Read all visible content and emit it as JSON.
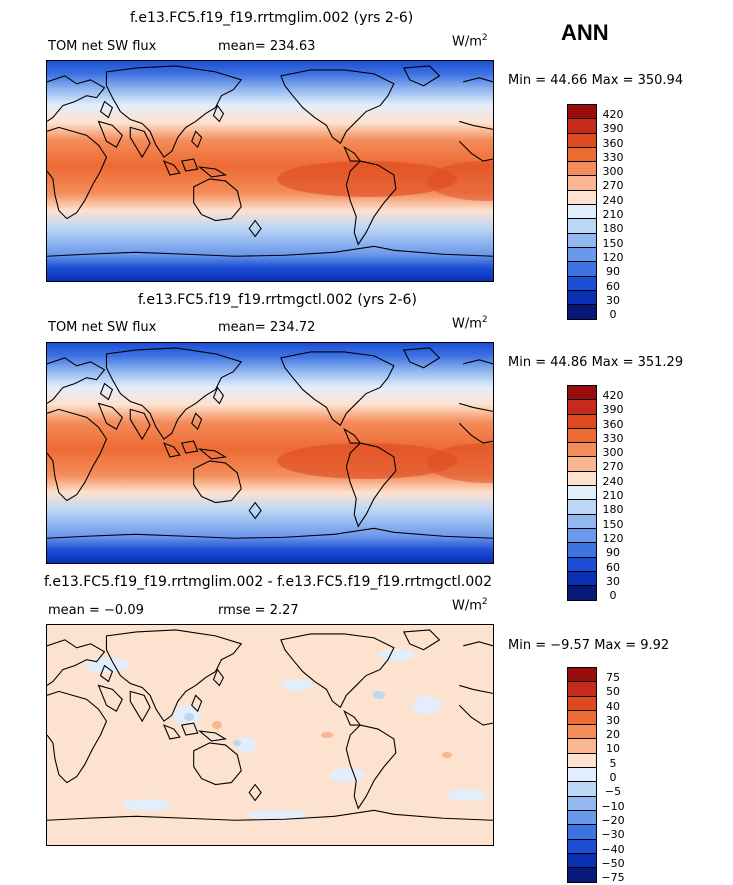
{
  "season": "ANN",
  "panels": [
    {
      "title": "f.e13.FC5.f19_f19.rrtmglim.002 (yrs 2-6)",
      "left_label": "TOM net SW flux",
      "stat_label": "mean= 234.63",
      "units": "W/m",
      "units_exp": "2",
      "minmax": "Min =  44.66 Max = 350.94"
    },
    {
      "title": "f.e13.FC5.f19_f19.rrtmgctl.002 (yrs 2-6)",
      "left_label": "TOM net SW flux",
      "stat_label": "mean= 234.72",
      "units": "W/m",
      "units_exp": "2",
      "minmax": "Min =  44.86 Max = 351.29"
    },
    {
      "title": "f.e13.FC5.f19_f19.rrtmglim.002 - f.e13.FC5.f19_f19.rrtmgctl.002",
      "left_label": "mean =  −0.09",
      "stat_label": "rmse =   2.27",
      "units": "W/m",
      "units_exp": "2",
      "minmax": "Min =  −9.57 Max =   9.92"
    }
  ],
  "colorbars": {
    "absolute": {
      "levels": [
        "420",
        "390",
        "360",
        "330",
        "300",
        "270",
        "240",
        "210",
        "180",
        "150",
        "120",
        "90",
        "60",
        "30",
        "0"
      ],
      "colors": [
        "#9b0d0d",
        "#c62a1a",
        "#de4a1f",
        "#ed6a33",
        "#f48d5b",
        "#f9b690",
        "#fde2cf",
        "#e2eefb",
        "#bcd6f6",
        "#93b8f0",
        "#6a98ea",
        "#3e73e2",
        "#1d4fd6",
        "#0a2fb3",
        "#08197a"
      ]
    },
    "difference": {
      "levels": [
        "75",
        "50",
        "40",
        "30",
        "20",
        "10",
        "5",
        "0",
        "−5",
        "−10",
        "−20",
        "−30",
        "−40",
        "−50",
        "−75"
      ],
      "colors": [
        "#9b0d0d",
        "#c62a1a",
        "#de4a1f",
        "#ed6a33",
        "#f48d5b",
        "#f9b690",
        "#fde2cf",
        "#e2eefb",
        "#bcd6f6",
        "#93b8f0",
        "#6a98ea",
        "#3e73e2",
        "#1d4fd6",
        "#0a2fb3",
        "#08197a"
      ]
    }
  },
  "chart_data": [
    {
      "type": "heatmap",
      "title": "f.e13.FC5.f19_f19.rrtmglim.002 (yrs 2-6)",
      "variable": "TOM net SW flux",
      "units": "W/m^2",
      "mean": 234.63,
      "min": 44.66,
      "max": 350.94,
      "contour_levels": [
        0,
        30,
        60,
        90,
        120,
        150,
        180,
        210,
        240,
        270,
        300,
        330,
        360,
        390,
        420
      ],
      "map_projection": "cylindrical equidistant, Pacific-centered"
    },
    {
      "type": "heatmap",
      "title": "f.e13.FC5.f19_f19.rrtmgctl.002 (yrs 2-6)",
      "variable": "TOM net SW flux",
      "units": "W/m^2",
      "mean": 234.72,
      "min": 44.86,
      "max": 351.29,
      "contour_levels": [
        0,
        30,
        60,
        90,
        120,
        150,
        180,
        210,
        240,
        270,
        300,
        330,
        360,
        390,
        420
      ],
      "map_projection": "cylindrical equidistant, Pacific-centered"
    },
    {
      "type": "heatmap",
      "title": "f.e13.FC5.f19_f19.rrtmglim.002 - f.e13.FC5.f19_f19.rrtmgctl.002",
      "units": "W/m^2",
      "mean": -0.09,
      "rmse": 2.27,
      "min": -9.57,
      "max": 9.92,
      "contour_levels": [
        -75,
        -50,
        -40,
        -30,
        -20,
        -10,
        -5,
        0,
        5,
        10,
        20,
        30,
        40,
        50,
        75
      ],
      "map_projection": "cylindrical equidistant, Pacific-centered"
    }
  ]
}
